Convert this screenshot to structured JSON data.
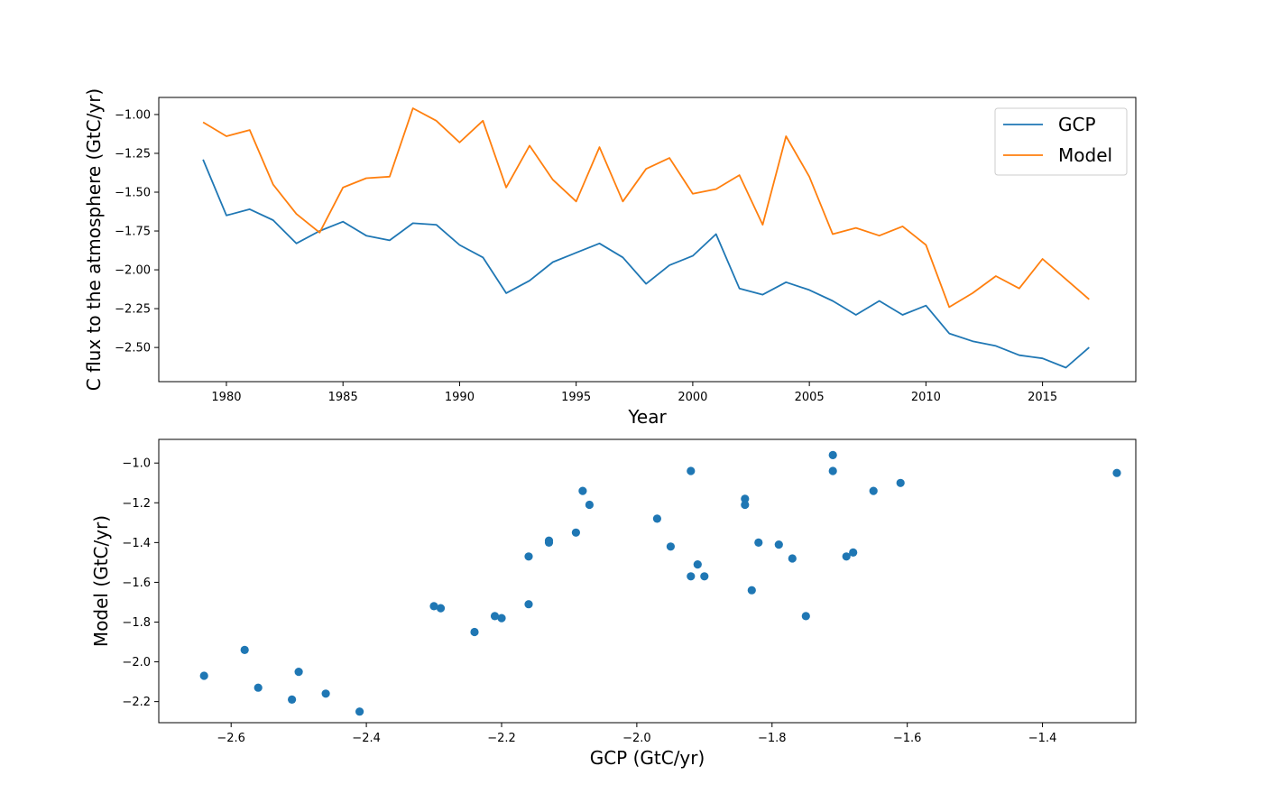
{
  "colors": {
    "gcp": "#1f77b4",
    "model": "#ff7f0e"
  },
  "chart_data": [
    {
      "type": "line",
      "xlabel": "Year",
      "ylabel": "C flux to the atmosphere (GtC/yr)",
      "xlim": [
        1977.1,
        2019.0
      ],
      "ylim": [
        -2.72,
        -0.89
      ],
      "xticks": [
        1980,
        1985,
        1990,
        1995,
        2000,
        2005,
        2010,
        2015
      ],
      "yticks": [
        -1.0,
        -1.25,
        -1.5,
        -1.75,
        -2.0,
        -2.25,
        -2.5
      ],
      "ytick_labels": [
        "−1.00",
        "−1.25",
        "−1.50",
        "−1.75",
        "−2.00",
        "−2.25",
        "−2.50"
      ],
      "legend_position": "top-right",
      "x": [
        1979,
        1980,
        1981,
        1982,
        1983,
        1984,
        1985,
        1986,
        1987,
        1988,
        1989,
        1990,
        1991,
        1992,
        1993,
        1994,
        1995,
        1996,
        1997,
        1998,
        1999,
        2000,
        2001,
        2002,
        2003,
        2004,
        2005,
        2006,
        2007,
        2008,
        2009,
        2010,
        2011,
        2012,
        2013,
        2014,
        2015,
        2016,
        2017
      ],
      "series": [
        {
          "name": "GCP",
          "color_key": "gcp",
          "values": [
            -1.29,
            -1.65,
            -1.61,
            -1.68,
            -1.83,
            -1.75,
            -1.69,
            -1.78,
            -1.81,
            -1.7,
            -1.71,
            -1.84,
            -1.92,
            -2.15,
            -2.07,
            -1.95,
            -1.89,
            -1.83,
            -1.92,
            -2.09,
            -1.97,
            -1.91,
            -1.77,
            -2.12,
            -2.16,
            -2.08,
            -2.13,
            -2.2,
            -2.29,
            -2.2,
            -2.29,
            -2.23,
            -2.41,
            -2.46,
            -2.49,
            -2.55,
            -2.57,
            -2.63,
            -2.5
          ]
        },
        {
          "name": "Model",
          "color_key": "model",
          "values": [
            -1.05,
            -1.14,
            -1.1,
            -1.45,
            -1.64,
            -1.76,
            -1.47,
            -1.41,
            -1.4,
            -0.96,
            -1.04,
            -1.18,
            -1.04,
            -1.47,
            -1.2,
            -1.42,
            -1.56,
            -1.21,
            -1.56,
            -1.35,
            -1.28,
            -1.51,
            -1.48,
            -1.39,
            -1.71,
            -1.14,
            -1.4,
            -1.77,
            -1.73,
            -1.78,
            -1.72,
            -1.84,
            -2.24,
            -2.15,
            -2.04,
            -2.12,
            -1.93,
            -2.06,
            -2.19
          ]
        }
      ]
    },
    {
      "type": "scatter",
      "xlabel": "GCP (GtC/yr)",
      "ylabel": "Model (GtC/yr)",
      "xlim": [
        -2.707,
        -1.262
      ],
      "ylim": [
        -2.306,
        -0.881
      ],
      "xticks": [
        -2.6,
        -2.4,
        -2.2,
        -2.0,
        -1.8,
        -1.6,
        -1.4
      ],
      "xtick_labels": [
        "−2.6",
        "−2.4",
        "−2.2",
        "−2.0",
        "−1.8",
        "−1.6",
        "−1.4"
      ],
      "yticks": [
        -1.0,
        -1.2,
        -1.4,
        -1.6,
        -1.8,
        -2.0,
        -2.2
      ],
      "ytick_labels": [
        "−1.0",
        "−1.2",
        "−1.4",
        "−1.6",
        "−1.8",
        "−2.0",
        "−2.2"
      ],
      "color_key": "gcp",
      "points": [
        [
          -2.64,
          -2.07
        ],
        [
          -2.58,
          -1.94
        ],
        [
          -2.56,
          -2.13
        ],
        [
          -2.51,
          -2.19
        ],
        [
          -2.5,
          -2.05
        ],
        [
          -2.46,
          -2.16
        ],
        [
          -2.41,
          -2.25
        ],
        [
          -2.3,
          -1.72
        ],
        [
          -2.29,
          -1.73
        ],
        [
          -2.24,
          -1.85
        ],
        [
          -2.21,
          -1.77
        ],
        [
          -2.2,
          -1.78
        ],
        [
          -2.16,
          -1.71
        ],
        [
          -2.16,
          -1.47
        ],
        [
          -2.13,
          -1.4
        ],
        [
          -2.13,
          -1.39
        ],
        [
          -2.09,
          -1.35
        ],
        [
          -2.08,
          -1.14
        ],
        [
          -2.07,
          -1.21
        ],
        [
          -1.97,
          -1.28
        ],
        [
          -1.95,
          -1.42
        ],
        [
          -1.92,
          -1.04
        ],
        [
          -1.92,
          -1.57
        ],
        [
          -1.91,
          -1.51
        ],
        [
          -1.9,
          -1.57
        ],
        [
          -1.84,
          -1.18
        ],
        [
          -1.84,
          -1.21
        ],
        [
          -1.83,
          -1.64
        ],
        [
          -1.82,
          -1.4
        ],
        [
          -1.79,
          -1.41
        ],
        [
          -1.77,
          -1.48
        ],
        [
          -1.75,
          -1.77
        ],
        [
          -1.71,
          -1.04
        ],
        [
          -1.71,
          -0.96
        ],
        [
          -1.69,
          -1.47
        ],
        [
          -1.68,
          -1.45
        ],
        [
          -1.65,
          -1.14
        ],
        [
          -1.61,
          -1.1
        ],
        [
          -1.29,
          -1.05
        ]
      ]
    }
  ]
}
